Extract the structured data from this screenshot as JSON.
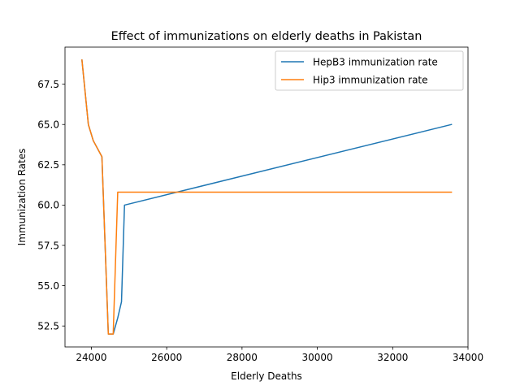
{
  "chart_data": {
    "type": "line",
    "title": "Effect of immunizations on elderly deaths in Pakistan",
    "xlabel": "Elderly Deaths",
    "ylabel": "Immunization Rates",
    "xlim": [
      23300,
      34000
    ],
    "ylim": [
      51.2,
      69.8
    ],
    "xticks": [
      24000,
      26000,
      28000,
      30000,
      32000,
      34000
    ],
    "xtick_labels": [
      "24000",
      "26000",
      "28000",
      "30000",
      "32000",
      "34000"
    ],
    "yticks": [
      52.5,
      55.0,
      57.5,
      60.0,
      62.5,
      65.0,
      67.5
    ],
    "ytick_labels": [
      "52.5",
      "55.0",
      "57.5",
      "60.0",
      "62.5",
      "65.0",
      "67.5"
    ],
    "grid": false,
    "legend_position": "top-right",
    "series": [
      {
        "name": "HepB3 immunization rate",
        "color": "#1f77b4",
        "points": [
          [
            23750,
            69
          ],
          [
            23920,
            65
          ],
          [
            24050,
            64
          ],
          [
            24280,
            63
          ],
          [
            24450,
            52
          ],
          [
            24580,
            52
          ],
          [
            24700,
            53
          ],
          [
            24800,
            54
          ],
          [
            24880,
            60
          ],
          [
            33560,
            65
          ]
        ]
      },
      {
        "name": "Hip3 immunization rate",
        "color": "#ff7f0e",
        "points": [
          [
            23750,
            69
          ],
          [
            23920,
            65
          ],
          [
            24050,
            64
          ],
          [
            24280,
            63
          ],
          [
            24450,
            52
          ],
          [
            24580,
            52
          ],
          [
            24700,
            60.8
          ],
          [
            33560,
            60.8
          ]
        ]
      }
    ]
  }
}
